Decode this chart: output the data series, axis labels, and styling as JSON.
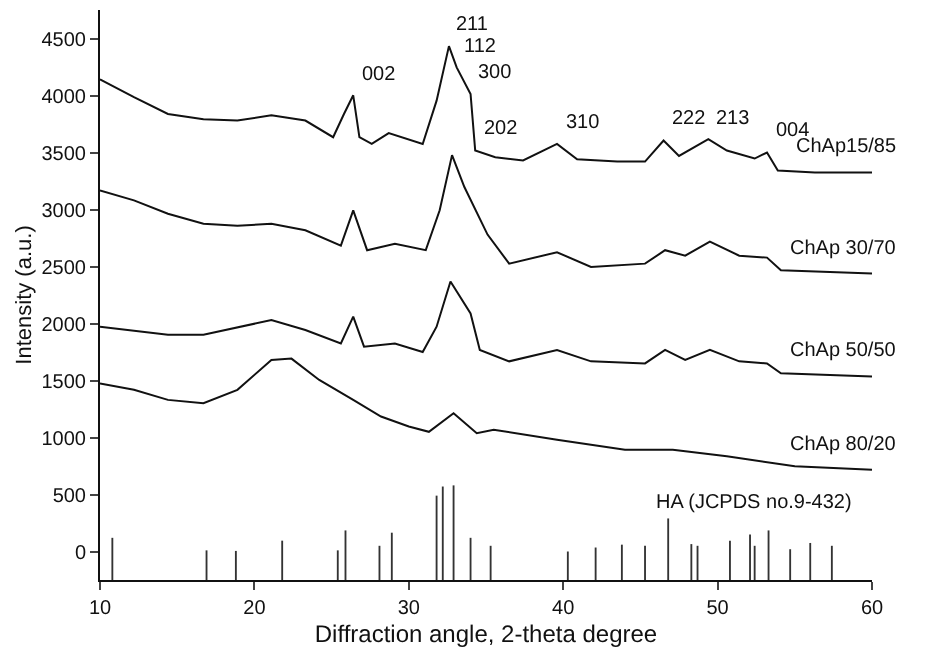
{
  "chart_data": {
    "type": "line",
    "xlabel": "Diffraction angle, 2-theta degree",
    "ylabel": "Intensity (a.u.)",
    "xlim": [
      10,
      60
    ],
    "ylim": [
      -250,
      4750
    ],
    "xticks": [
      10,
      20,
      30,
      40,
      50,
      60
    ],
    "yticks": [
      0,
      500,
      1000,
      1500,
      2000,
      2500,
      3000,
      3500,
      4000,
      4500
    ],
    "grid": false,
    "legend": false,
    "marker": "none",
    "line_style": "solid",
    "series": [
      {
        "name": "ChAp15/85",
        "color": "#111111",
        "x": [
          10,
          12.2,
          14.4,
          16.7,
          18.9,
          21.1,
          23.3,
          25.1,
          25.8,
          26.4,
          26.8,
          27.6,
          28.7,
          30.9,
          31.8,
          32.6,
          33.1,
          34.0,
          34.3,
          35.6,
          37.4,
          39.6,
          40.9,
          43.5,
          45.3,
          46.5,
          47.5,
          49.4,
          50.6,
          52.4,
          53.2,
          53.9,
          56.3,
          60
        ],
        "values": [
          4142,
          3985,
          3838,
          3792,
          3780,
          3827,
          3780,
          3634,
          3838,
          4002,
          3634,
          3575,
          3670,
          3575,
          3955,
          4433,
          4247,
          4013,
          3517,
          3459,
          3430,
          3575,
          3440,
          3420,
          3420,
          3605,
          3470,
          3617,
          3517,
          3447,
          3500,
          3342,
          3325,
          3325
        ]
      },
      {
        "name": "ChAp 30/70",
        "color": "#111111",
        "x": [
          10,
          12.2,
          14.4,
          16.7,
          18.9,
          21.1,
          23.3,
          25.6,
          26.4,
          27.3,
          29.1,
          31.1,
          32.0,
          32.8,
          33.6,
          35.1,
          36.5,
          39.6,
          41.8,
          45.3,
          46.6,
          47.9,
          49.5,
          51.4,
          53.2,
          54.1,
          60
        ],
        "values": [
          3168,
          3080,
          2963,
          2875,
          2858,
          2875,
          2818,
          2683,
          2993,
          2643,
          2700,
          2643,
          2993,
          3477,
          3197,
          2780,
          2525,
          2625,
          2496,
          2525,
          2643,
          2595,
          2718,
          2595,
          2578,
          2468,
          2438
        ]
      },
      {
        "name": "ChAp 50/50",
        "color": "#111111",
        "x": [
          10,
          14.4,
          16.7,
          21.1,
          23.3,
          25.6,
          26.4,
          27.1,
          29.1,
          30.9,
          31.8,
          32.7,
          34.0,
          34.6,
          36.5,
          39.6,
          41.8,
          45.3,
          46.6,
          47.9,
          49.5,
          51.4,
          53.2,
          54.1,
          60
        ],
        "values": [
          1972,
          1902,
          1902,
          2030,
          1943,
          1825,
          2060,
          1797,
          1825,
          1750,
          1972,
          2368,
          2088,
          1768,
          1668,
          1768,
          1668,
          1650,
          1768,
          1680,
          1768,
          1668,
          1650,
          1563,
          1535
        ]
      },
      {
        "name": "ChAp 80/20",
        "color": "#111111",
        "x": [
          10,
          12.2,
          14.4,
          16.7,
          18.9,
          21.1,
          22.4,
          24.2,
          26.4,
          28.2,
          30.0,
          31.3,
          32.9,
          34.4,
          35.5,
          39.6,
          44.0,
          47.1,
          50.6,
          55.0,
          60
        ],
        "values": [
          1475,
          1418,
          1330,
          1300,
          1418,
          1680,
          1692,
          1505,
          1330,
          1184,
          1097,
          1050,
          1213,
          1038,
          1068,
          980,
          893,
          893,
          835,
          747,
          718
        ]
      },
      {
        "name": "HA (JCPDS no.9-432)",
        "type": "bar",
        "color": "#333333",
        "x": [
          10.8,
          16.9,
          18.8,
          21.8,
          25.4,
          25.9,
          28.1,
          28.9,
          31.8,
          32.2,
          32.9,
          34.0,
          35.3,
          40.3,
          42.1,
          43.8,
          45.3,
          46.8,
          48.3,
          48.7,
          50.8,
          52.1,
          52.4,
          53.3,
          54.7,
          56.0,
          57.4
        ],
        "base": [
          -250,
          -250,
          -250,
          -250,
          -250,
          -250,
          -250,
          -250,
          -250,
          -250,
          -250,
          -250,
          -250,
          -250,
          -250,
          -250,
          -250,
          -250,
          -250,
          -250,
          -250,
          -250,
          -250,
          -250,
          -250,
          -250,
          -250
        ],
        "values": [
          370,
          260,
          255,
          345,
          260,
          435,
          300,
          415,
          740,
          820,
          830,
          370,
          300,
          250,
          285,
          310,
          300,
          540,
          315,
          300,
          345,
          400,
          300,
          435,
          270,
          325,
          300
        ]
      }
    ],
    "annotations": [
      {
        "text": "002",
        "x": 26.4,
        "y": 4002
      },
      {
        "text": "211",
        "x": 32.6,
        "y": 4433
      },
      {
        "text": "112",
        "x": 33.1,
        "y": 4247
      },
      {
        "text": "300",
        "x": 34.0,
        "y": 4013
      },
      {
        "text": "202",
        "x": 34.3,
        "y": 3517
      },
      {
        "text": "310",
        "x": 39.6,
        "y": 3575
      },
      {
        "text": "222",
        "x": 46.5,
        "y": 3605
      },
      {
        "text": "213",
        "x": 49.4,
        "y": 3617
      },
      {
        "text": "004",
        "x": 53.2,
        "y": 3500
      }
    ]
  }
}
